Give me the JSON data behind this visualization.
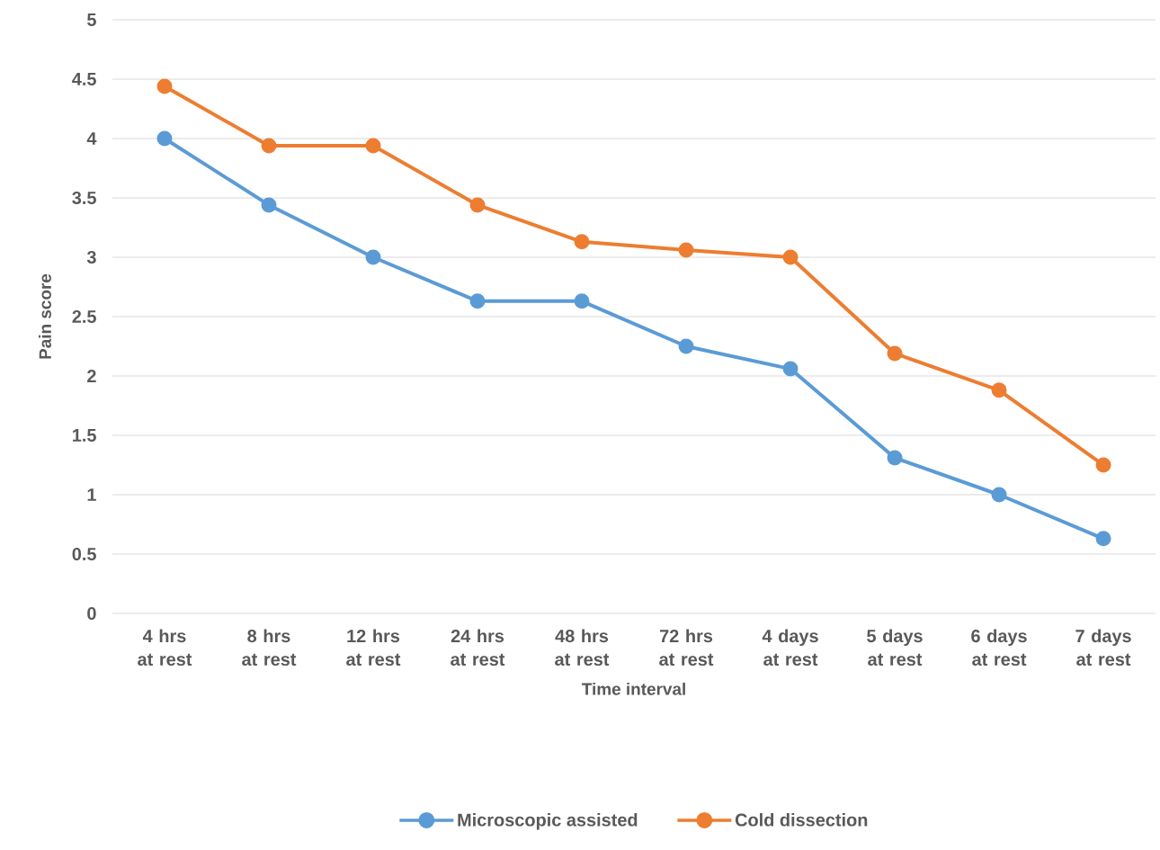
{
  "chart_data": {
    "type": "line",
    "xlabel": "Time interval",
    "ylabel": "Pain score",
    "categories": [
      "4 hrs at rest",
      "8 hrs at rest",
      "12 hrs at rest",
      "24 hrs at rest",
      "48 hrs at rest",
      "72 hrs at rest",
      "4 days at rest",
      "5 days at rest",
      "6 days at rest",
      "7 days at rest"
    ],
    "series": [
      {
        "name": "Microscopic assisted",
        "color": "#5b9bd5",
        "values": [
          4.0,
          3.44,
          3.0,
          2.63,
          2.63,
          2.25,
          2.06,
          1.31,
          1.0,
          0.63
        ]
      },
      {
        "name": "Cold dissection",
        "color": "#ed7d31",
        "values": [
          4.44,
          3.94,
          3.94,
          3.44,
          3.13,
          3.06,
          3.0,
          2.19,
          1.88,
          1.25
        ]
      }
    ],
    "ylim": [
      0,
      5
    ],
    "yticks": [
      0,
      0.5,
      1,
      1.5,
      2,
      2.5,
      3,
      3.5,
      4,
      4.5,
      5
    ],
    "grid": "y",
    "legend": "bottom",
    "marker": "circle",
    "line_style": "solid"
  }
}
